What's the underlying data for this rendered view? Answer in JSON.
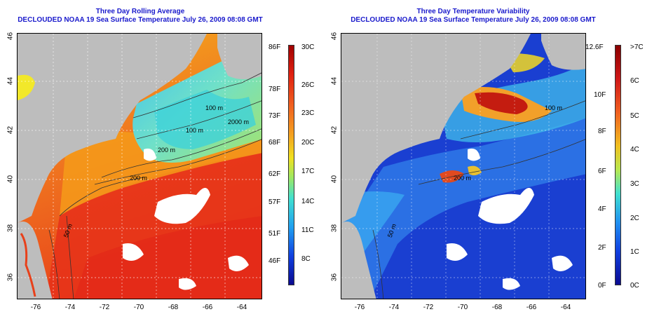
{
  "panels": [
    {
      "title1": "Three Day Rolling Average",
      "title2": "DECLOUDED NOAA 19 Sea Surface Temperature July 26, 2009 08:08 GMT",
      "colorbar_f": [
        "86F",
        "78F",
        "73F",
        "68F",
        "62F",
        "57F",
        "51F",
        "46F"
      ],
      "colorbar_c": [
        "30C",
        "26C",
        "23C",
        "20C",
        "17C",
        "14C",
        "11C",
        "8C"
      ],
      "contours": [
        "100 m",
        "100 m",
        "2000 m",
        "200 m",
        "200 m",
        "50 m"
      ]
    },
    {
      "title1": "Three Day Temperature Variability",
      "title2": "DECLOUDED NOAA 19 Sea Surface Temperature July 26, 2009 08:08 GMT",
      "colorbar_f": [
        "12.6F",
        "10F",
        "8F",
        "6F",
        "4F",
        "2F",
        "0F"
      ],
      "colorbar_c": [
        ">7C",
        "6C",
        "5C",
        "4C",
        "3C",
        "2C",
        "1C",
        "0C"
      ],
      "contours": [
        "100 m",
        "200 m",
        "50 m"
      ]
    }
  ],
  "axes": {
    "lon_ticks": [
      "-76",
      "-74",
      "-72",
      "-70",
      "-68",
      "-66",
      "-64"
    ],
    "lat_ticks": [
      "46",
      "44",
      "42",
      "40",
      "38",
      "36"
    ]
  },
  "colors": {
    "title": "#1a1acc",
    "land": "#bdbdbd",
    "sst_warm": "#e8401a",
    "sst_cool": "#4fd6e6",
    "variability_low": "#1a3fd1",
    "variability_high": "#c41c10"
  }
}
